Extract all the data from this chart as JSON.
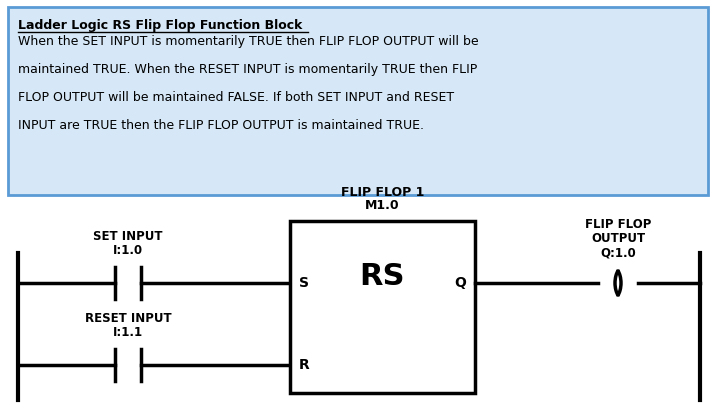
{
  "bg_color": "#ffffff",
  "info_box_color": "#d6e8f7",
  "info_box_border": "#5b9bd5",
  "title_text": "Ladder Logic RS Flip Flop Function Block",
  "body_line1": "When the SET INPUT is momentarily TRUE then FLIP FLOP OUTPUT will be",
  "body_line2": "maintained TRUE. When the RESET INPUT is momentarily TRUE then FLIP",
  "body_line3": "FLOP OUTPUT will be maintained FALSE. If both SET INPUT and RESET",
  "body_line4": "INPUT are TRUE then the FLIP FLOP OUTPUT is maintained TRUE.",
  "set_input_label": "SET INPUT",
  "set_input_addr": "I:1.0",
  "reset_input_label": "RESET INPUT",
  "reset_input_addr": "I:1.1",
  "block_label1": "FLIP FLOP 1",
  "block_label2": "M1.0",
  "block_name": "RS",
  "s_label": "S",
  "r_label": "R",
  "q_label": "Q",
  "output_label1": "FLIP FLOP",
  "output_label2": "OUTPUT",
  "output_addr": "Q:1.0",
  "line_color": "#000000",
  "text_color": "#000000",
  "line_width": 2.5,
  "border_lw": 2.0
}
